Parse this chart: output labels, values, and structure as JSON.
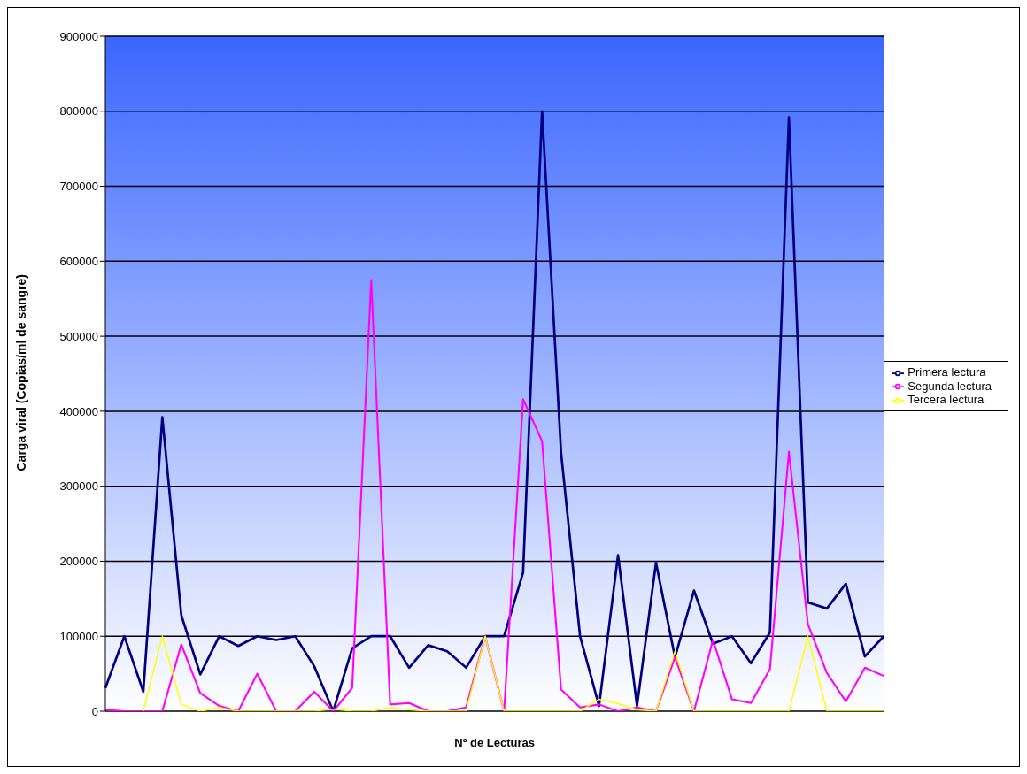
{
  "chart_data": {
    "type": "line",
    "xlabel": "Nº de Lecturas",
    "ylabel": "Carga viral (Copias/ml de sangre)",
    "categories": [
      null,
      null,
      null,
      null,
      null,
      null,
      null,
      null,
      null,
      null,
      null,
      null,
      null,
      null,
      null,
      null,
      null,
      null,
      null,
      null,
      null,
      null,
      null,
      null,
      null,
      null,
      null,
      null,
      null,
      null,
      null,
      null,
      null,
      null,
      null,
      null,
      null,
      null,
      null,
      null,
      null,
      null
    ],
    "series": [
      {
        "name": "Primera lectura",
        "color": "#000080",
        "values": [
          31000,
          100000,
          26000,
          392000,
          128000,
          49000,
          100000,
          87000,
          100000,
          95000,
          100000,
          60000,
          0,
          84000,
          100000,
          100000,
          58000,
          88000,
          80000,
          58000,
          100000,
          100000,
          185000,
          800000,
          345000,
          100000,
          7000,
          208000,
          7000,
          198000,
          72000,
          161000,
          90000,
          100000,
          64000,
          105000,
          792000,
          145000,
          137000,
          170000,
          73000,
          100000
        ]
      },
      {
        "name": "Segunda lectura",
        "color": "#ff00ff",
        "values": [
          2000,
          0,
          0,
          0,
          89000,
          24000,
          7000,
          0,
          50000,
          0,
          0,
          26000,
          0,
          31000,
          575000,
          9000,
          11000,
          0,
          0,
          5000,
          100000,
          0,
          416000,
          360000,
          29000,
          5000,
          9000,
          0,
          5000,
          0,
          72000,
          0,
          95000,
          16000,
          11000,
          56000,
          346000,
          116000,
          51000,
          13000,
          58000,
          47000
        ]
      },
      {
        "name": "Tercera lectura",
        "color": "#ffff00",
        "values": [
          null,
          null,
          0,
          100000,
          9000,
          0,
          5000,
          0,
          0,
          0,
          0,
          0,
          3000,
          0,
          0,
          5000,
          2000,
          0,
          0,
          0,
          100000,
          0,
          0,
          0,
          0,
          0,
          16000,
          10000,
          2000,
          0,
          80000,
          0,
          0,
          0,
          0,
          0,
          0,
          100000,
          0,
          0,
          0,
          0
        ]
      }
    ],
    "ylim": [
      0,
      900000
    ],
    "yticks": [
      0,
      100000,
      200000,
      300000,
      400000,
      500000,
      600000,
      700000,
      800000,
      900000
    ],
    "grid": "y",
    "legend": "right",
    "marker": "none",
    "line_style": "solid"
  }
}
